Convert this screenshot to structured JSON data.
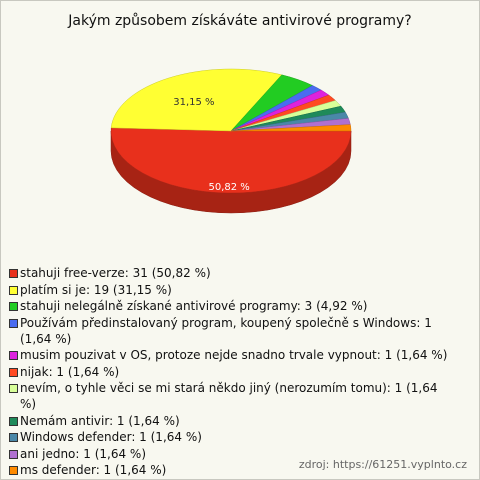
{
  "chart_data": {
    "type": "pie",
    "title": "Jakým způsobem získáváte antivirové programy?",
    "categories": [
      "stahuji free-verze: 31 (50,82 %)",
      "platím si je: 19 (31,15 %)",
      "stahuji nelegálně získané antivirové programy: 3 (4,92 %)",
      "Používám předinstalovaný program, koupený společně s Windows: 1 (1,64 %)",
      "musim pouzivat v OS, protoze nejde snadno trvale vypnout: 1 (1,64 %)",
      "nijak: 1 (1,64 %)",
      "nevím, o tyhle věci se mi stará někdo jiný (nerozumím tomu): 1 (1,64 %)",
      "Nemám antivir: 1 (1,64 %)",
      "Windows defender: 1 (1,64 %)",
      "ani jedno: 1 (1,64 %)",
      "ms defender: 1 (1,64 %)"
    ],
    "values": [
      50.82,
      31.15,
      4.92,
      1.64,
      1.64,
      1.64,
      1.64,
      1.64,
      1.64,
      1.64,
      1.64
    ],
    "value_labels": [
      "50,82 %",
      "31,15 %",
      null,
      null,
      null,
      null,
      null,
      null,
      null,
      null,
      null
    ],
    "colors": [
      "#e8301c",
      "#ffff33",
      "#22cc22",
      "#4a6cf0",
      "#dd22dd",
      "#ff4a22",
      "#d8ff99",
      "#1f8a5a",
      "#4a88a8",
      "#b070d0",
      "#ff8a00"
    ],
    "source": "zdroj: https://61251.vyplnto.cz"
  }
}
